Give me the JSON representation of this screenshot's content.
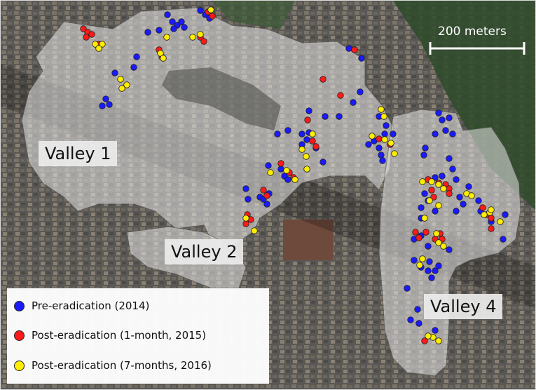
{
  "scale_bar": {
    "label": "200 meters"
  },
  "valleys": [
    {
      "label": "Valley 1"
    },
    {
      "label": "Valley 2"
    },
    {
      "label": "Valley 4"
    }
  ],
  "legend": [
    {
      "label": "Pre-eradication (2014)",
      "color": "#1a1aff"
    },
    {
      "label": "Post-eradication (1-month, 2015)",
      "color": "#ff1a1a"
    },
    {
      "label": "Post-eradication (7-months, 2016)",
      "color": "#ffee00"
    }
  ],
  "colors": {
    "pre": "#1a1aff",
    "post_1m": "#ff1a1a",
    "post_7m": "#ffee00",
    "outline": "#222222",
    "valley_fill": "#e6e6e6"
  }
}
